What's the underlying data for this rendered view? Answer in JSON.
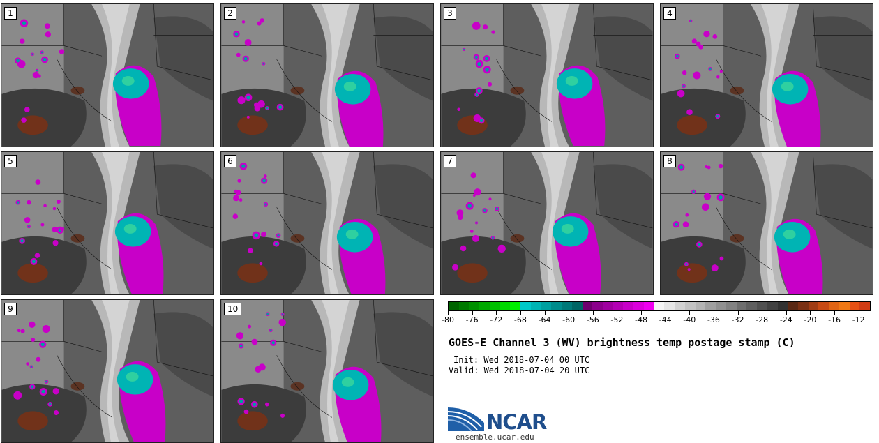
{
  "title": "GOES-E Channel 3 (WV) brightness temp postage stamp (C)",
  "init": "Init: Wed 2018-07-04 00 UTC",
  "valid": "Valid: Wed 2018-07-04 20 UTC",
  "logo_text": "NCAR",
  "url": "ensemble.ucar.edu",
  "panels": [
    {
      "label": "1"
    },
    {
      "label": "2"
    },
    {
      "label": "3"
    },
    {
      "label": "4"
    },
    {
      "label": "5"
    },
    {
      "label": "6"
    },
    {
      "label": "7"
    },
    {
      "label": "8"
    },
    {
      "label": "9"
    },
    {
      "label": "10"
    }
  ],
  "colorbar": {
    "min": -80,
    "max": -10,
    "tick_labels": [
      "-80",
      "-76",
      "-72",
      "-68",
      "-64",
      "-60",
      "-56",
      "-52",
      "-48",
      "-44",
      "-40",
      "-36",
      "-32",
      "-28",
      "-24",
      "-20",
      "-16",
      "-12"
    ],
    "colors": [
      "#006400",
      "#007a00",
      "#009000",
      "#00a800",
      "#00c000",
      "#00d800",
      "#00f000",
      "#00c8c8",
      "#00b4b4",
      "#00a0a0",
      "#008c8c",
      "#007878",
      "#006464",
      "#6e006e",
      "#8c008c",
      "#a000a0",
      "#b400b4",
      "#c800c8",
      "#dc00dc",
      "#f000f0",
      "#f5f5f5",
      "#e6e6e6",
      "#d2d2d2",
      "#c3c3c3",
      "#b4b4b4",
      "#a0a0a0",
      "#919191",
      "#828282",
      "#6e6e6e",
      "#5f5f5f",
      "#505050",
      "#414141",
      "#323232",
      "#5a2814",
      "#7a3014",
      "#a03c14",
      "#c84a14",
      "#e06414",
      "#f07814",
      "#e65014",
      "#d23c14"
    ]
  }
}
